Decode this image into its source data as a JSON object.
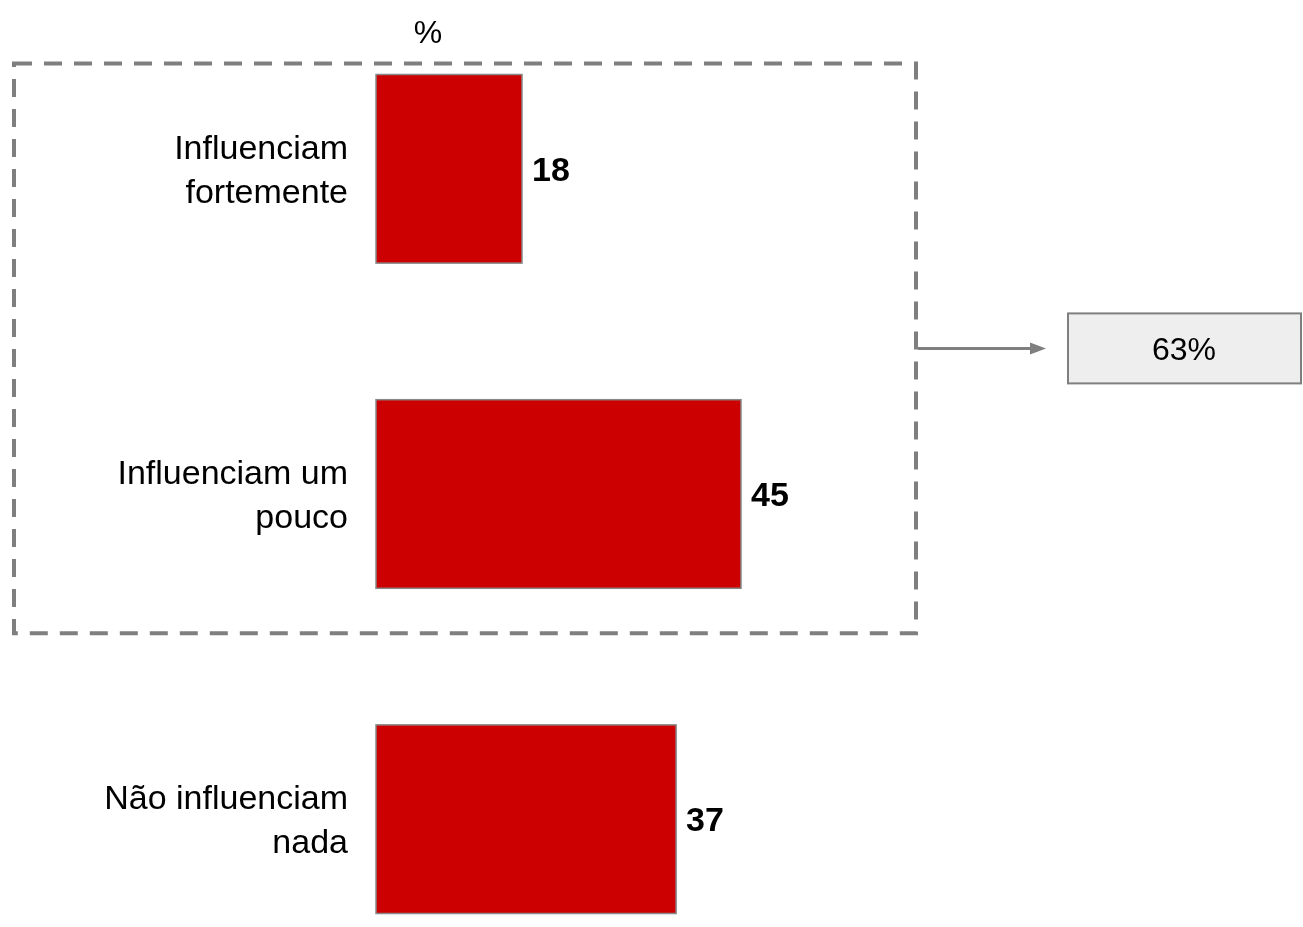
{
  "chart_data": {
    "type": "bar",
    "orientation": "horizontal",
    "title": "%",
    "categories": [
      "Influenciam fortemente",
      "Influenciam um pouco",
      "Não influenciam nada"
    ],
    "values": [
      18,
      45,
      37
    ],
    "color": "#cc0000",
    "data_labels": true,
    "annotations": [
      "63%"
    ]
  }
}
